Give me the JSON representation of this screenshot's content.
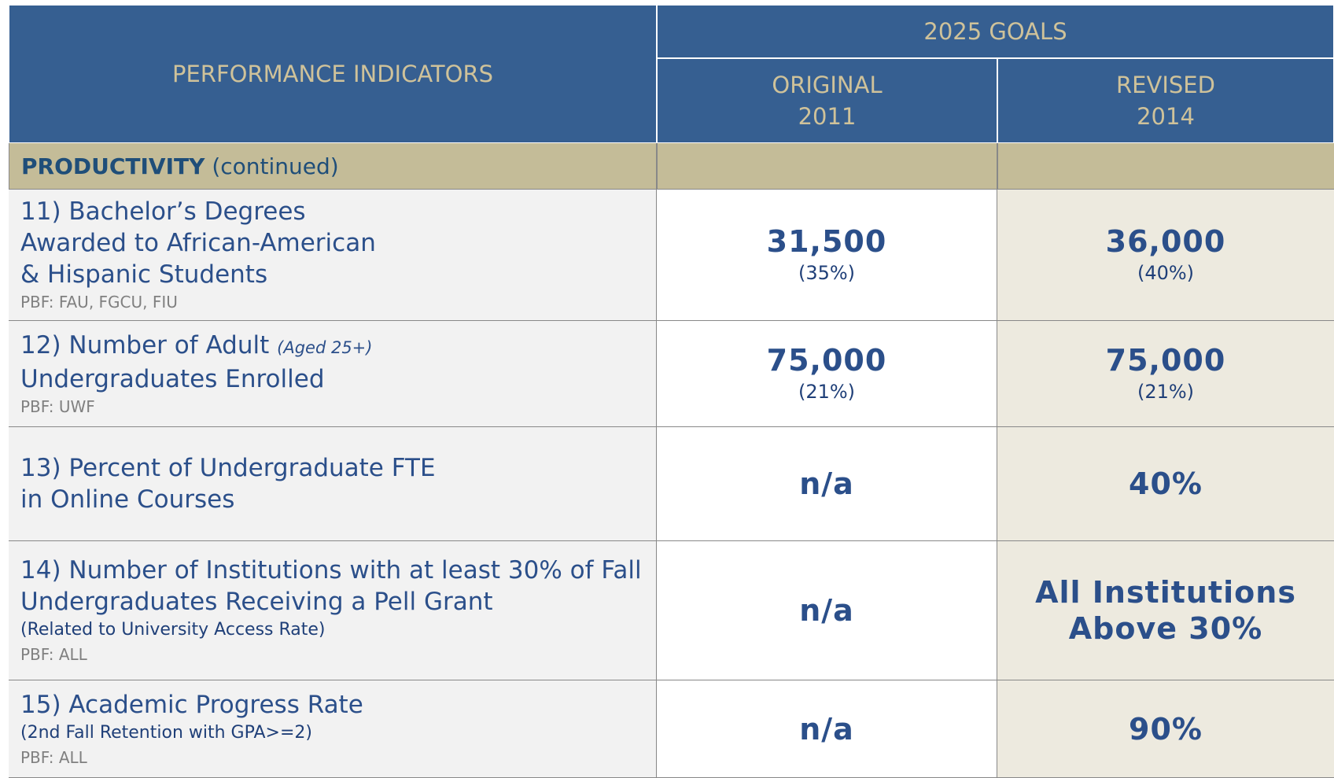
{
  "header": {
    "indicators": "PERFORMANCE INDICATORS",
    "goals": "2025 GOALS",
    "original": [
      "ORIGINAL",
      "2011"
    ],
    "revised": [
      "REVISED",
      "2014"
    ]
  },
  "section": {
    "name": "PRODUCTIVITY",
    "note": "(continued)"
  },
  "rows": [
    {
      "lines": [
        "11) Bachelor’s Degrees",
        "Awarded to African-American",
        "& Hispanic Students"
      ],
      "pbf": "PBF: FAU, FGCU, FIU",
      "original": [
        "31,500",
        "(35%)"
      ],
      "revised": [
        "36,000",
        "(40%)"
      ]
    },
    {
      "lines": [
        "12) Number of Adult",
        "Undergraduates Enrolled"
      ],
      "aside": "(Aged 25+)",
      "pbf": "PBF: UWF",
      "original": [
        "75,000",
        "(21%)"
      ],
      "revised": [
        "75,000",
        "(21%)"
      ]
    },
    {
      "lines": [
        "13) Percent of Undergraduate FTE",
        "in Online Courses"
      ],
      "original": [
        "n/a"
      ],
      "revised": [
        "40%"
      ]
    },
    {
      "lines": [
        "14) Number of Institutions with at least 30% of Fall",
        "Undergraduates Receiving a Pell Grant"
      ],
      "sub": "(Related to University Access Rate)",
      "pbf": "PBF: ALL",
      "original": [
        "n/a"
      ],
      "revised": [
        "All Institutions",
        "Above 30%"
      ]
    },
    {
      "lines": [
        "15) Academic Progress Rate"
      ],
      "sub": "(2nd Fall Retention with GPA>=2)",
      "pbf": "PBF: ALL",
      "original": [
        "n/a"
      ],
      "revised": [
        "90%"
      ]
    }
  ]
}
